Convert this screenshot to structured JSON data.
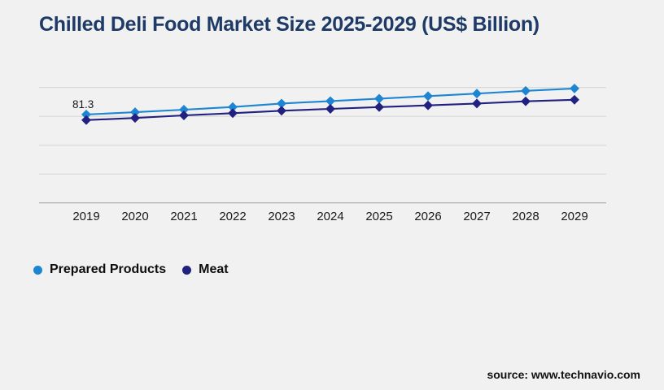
{
  "title": "Chilled Deli Food Market Size 2025-2029 (US$ Billion)",
  "source": "source: www.technavio.com",
  "colors": {
    "background": "#f1f1f2",
    "title": "#1e3a66",
    "grid": "#d7d7d7",
    "axis": "#a9a9a9",
    "tick_label": "#1a1a1a",
    "data_label": "#1a1a1a",
    "prepared_products": "#1d85d1",
    "meat": "#21217f"
  },
  "chart_data": {
    "type": "line",
    "title": "Chilled Deli Food Market Size 2025-2029 (US$ Billion)",
    "xlabel": "",
    "ylabel": "",
    "categories": [
      "2019",
      "2020",
      "2021",
      "2022",
      "2023",
      "2024",
      "2025",
      "2026",
      "2027",
      "2028",
      "2029"
    ],
    "series": [
      {
        "name": "Prepared Products",
        "color": "#1d85d1",
        "marker": "diamond",
        "values": [
          81.3,
          82.9,
          84.6,
          86.5,
          88.9,
          90.6,
          92.3,
          94.0,
          95.8,
          97.7,
          99.3
        ]
      },
      {
        "name": "Meat",
        "color": "#21217f",
        "marker": "diamond",
        "values": [
          77.4,
          78.9,
          80.7,
          82.2,
          83.9,
          85.2,
          86.4,
          87.6,
          88.9,
          90.4,
          91.5
        ]
      }
    ],
    "ylim": [
      20,
      107
    ],
    "gridline_values": [
      100,
      80,
      60,
      40
    ],
    "grid": true,
    "y_axis_labels_visible": false,
    "legend_position": "bottom-left",
    "data_labels": [
      {
        "series": "Prepared Products",
        "category": "2019",
        "text": "81.3"
      }
    ]
  },
  "legend": {
    "items": [
      {
        "label": "Prepared Products",
        "color": "#1d85d1"
      },
      {
        "label": "Meat",
        "color": "#21217f"
      }
    ]
  }
}
